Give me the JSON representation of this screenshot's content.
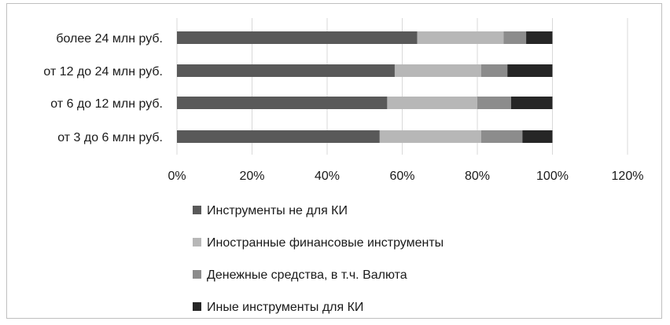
{
  "chart_data": {
    "type": "bar",
    "orientation": "horizontal",
    "stacked": true,
    "categories": [
      "более 24 млн руб.",
      "от 12 до 24 млн руб.",
      "от 6 до 12 млн руб.",
      "от 3 до 6 млн руб."
    ],
    "series": [
      {
        "name": "Инструменты не для КИ",
        "color": "#595959",
        "values": [
          64,
          58,
          56,
          54
        ]
      },
      {
        "name": "Иностранные финансовые инструменты",
        "color": "#b7b7b7",
        "values": [
          23,
          23,
          24,
          27
        ]
      },
      {
        "name": "Денежные средства, в т.ч. Валюта",
        "color": "#8c8c8c",
        "values": [
          6,
          7,
          9,
          11
        ]
      },
      {
        "name": "Иные инструменты для КИ",
        "color": "#262626",
        "values": [
          7,
          12,
          11,
          8
        ]
      }
    ],
    "xticks": [
      "0%",
      "20%",
      "40%",
      "60%",
      "80%",
      "100%",
      "120%"
    ],
    "xlim": [
      0,
      120
    ],
    "grid": true,
    "legend_position": "bottom"
  }
}
